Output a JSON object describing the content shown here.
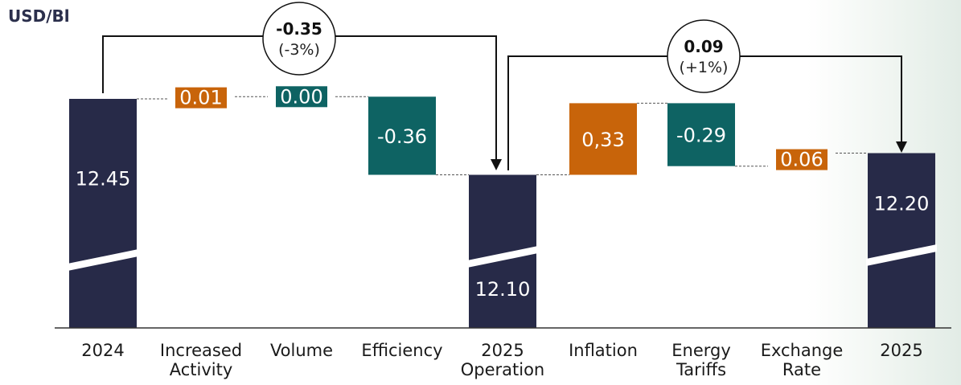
{
  "chart_data": {
    "type": "waterfall",
    "unit_label": "USD/Bl",
    "categories": [
      [
        "2024"
      ],
      [
        "Increased",
        "Activity"
      ],
      [
        "Volume"
      ],
      [
        "Efficiency"
      ],
      [
        "2025",
        "Operation"
      ],
      [
        "Inflation"
      ],
      [
        "Energy",
        "Tariffs"
      ],
      [
        "Exchange",
        "Rate"
      ],
      [
        "2025"
      ]
    ],
    "bars": [
      {
        "kind": "total",
        "value": 12.45,
        "label": "12.45",
        "color": "#272a48"
      },
      {
        "kind": "delta",
        "value": 0.01,
        "label": "0.01",
        "color": "#c8640a"
      },
      {
        "kind": "delta",
        "value": 0.0,
        "label": "0.00",
        "color": "#0e6363"
      },
      {
        "kind": "delta",
        "value": -0.36,
        "label": "-0.36",
        "color": "#0e6363"
      },
      {
        "kind": "total",
        "value": 12.1,
        "label": "12.10",
        "color": "#272a48"
      },
      {
        "kind": "delta",
        "value": 0.33,
        "label": "0,33",
        "color": "#c8640a"
      },
      {
        "kind": "delta",
        "value": -0.29,
        "label": "-0.29",
        "color": "#0e6363"
      },
      {
        "kind": "delta",
        "value": 0.06,
        "label": "0.06",
        "color": "#c8640a"
      },
      {
        "kind": "total",
        "value": 12.2,
        "label": "12.20",
        "color": "#272a48"
      }
    ],
    "annotations": [
      {
        "from": 0,
        "to": 4,
        "value": "-0.35",
        "pct": "(-3%)"
      },
      {
        "from": 4,
        "to": 8,
        "value": "0.09",
        "pct": "(+1%)"
      }
    ],
    "axis_break": true
  }
}
